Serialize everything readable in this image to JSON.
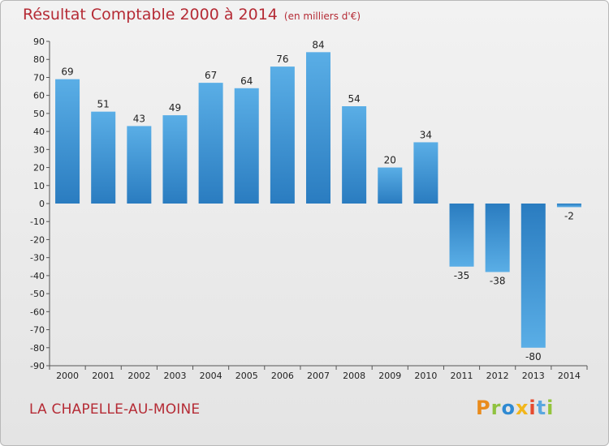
{
  "header": {
    "title": "Résultat Comptable 2000 à 2014",
    "subtitle": "(en milliers d'€)"
  },
  "footer": {
    "place": "LA CHAPELLE-AU-MOINE",
    "logo_text": "Proxiti"
  },
  "colors": {
    "title": "#b52b35",
    "bar_top": "#5aaee6",
    "bar_bottom": "#2a7cc0"
  },
  "chart_data": {
    "type": "bar",
    "title": "Résultat Comptable 2000 à 2014",
    "subtitle": "(en milliers d'€)",
    "xlabel": "",
    "ylabel": "",
    "ylim": [
      -90,
      90
    ],
    "ytick_step": 10,
    "grid": false,
    "categories": [
      "2000",
      "2001",
      "2002",
      "2003",
      "2004",
      "2005",
      "2006",
      "2007",
      "2008",
      "2009",
      "2010",
      "2011",
      "2012",
      "2013",
      "2014"
    ],
    "values": [
      69,
      51,
      43,
      49,
      67,
      64,
      76,
      84,
      54,
      20,
      34,
      -35,
      -38,
      -80,
      -2
    ]
  }
}
